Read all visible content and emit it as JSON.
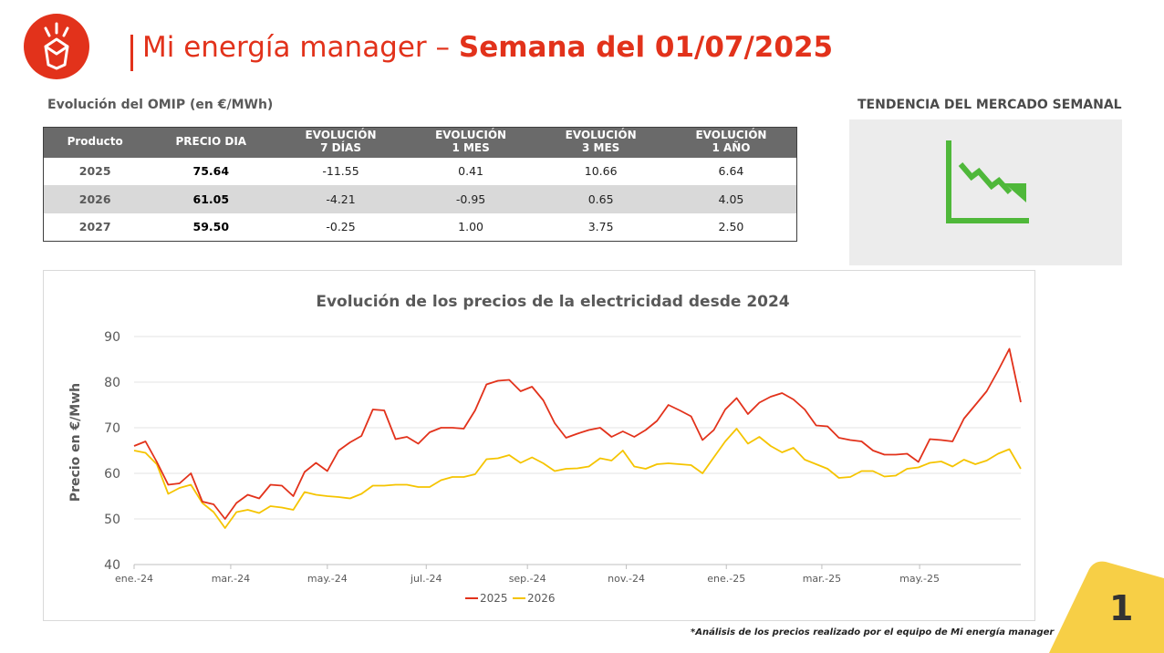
{
  "header": {
    "title_light": "Mi energía manager – ",
    "title_bold": "Semana del 01/07/2025"
  },
  "colors": {
    "brand_red": "#e2321b",
    "trend_green": "#4fb83a",
    "series_2025": "#e2321b",
    "series_2026": "#f5c400",
    "corner_yellow": "#f7cf46"
  },
  "omip": {
    "title": "Evolución del OMIP (en €/MWh)",
    "headers": [
      [
        "Producto"
      ],
      [
        "PRECIO DIA"
      ],
      [
        "EVOLUCIÓN",
        "7 DÍAS"
      ],
      [
        "EVOLUCIÓN",
        "1 MES"
      ],
      [
        "EVOLUCIÓN",
        "3 MES"
      ],
      [
        "EVOLUCIÓN",
        "1 AÑO"
      ]
    ],
    "rows": [
      [
        "2025",
        "75.64",
        "-11.55",
        "0.41",
        "10.66",
        "6.64"
      ],
      [
        "2026",
        "61.05",
        "-4.21",
        "-0.95",
        "0.65",
        "4.05"
      ],
      [
        "2027",
        "59.50",
        "-0.25",
        "1.00",
        "3.75",
        "2.50"
      ]
    ]
  },
  "trend": {
    "title": "TENDENCIA DEL MERCADO SEMANAL",
    "icon": "downtrend-chart-icon"
  },
  "chart_data": {
    "type": "line",
    "title": "Evolución de los precios de la electricidad desde 2024",
    "ylabel": "Precio en €/Mwh",
    "xlabel": "",
    "ylim": [
      40,
      90
    ],
    "yticks": [
      40,
      50,
      60,
      70,
      80,
      90
    ],
    "xlim": [
      0,
      78
    ],
    "xticks": [
      {
        "label": "ene.-24",
        "x": 0
      },
      {
        "label": "mar.-24",
        "x": 8.5
      },
      {
        "label": "may.-24",
        "x": 17
      },
      {
        "label": "jul.-24",
        "x": 25.7
      },
      {
        "label": "sep.-24",
        "x": 34.6
      },
      {
        "label": "nov.-24",
        "x": 43.3
      },
      {
        "label": "ene.-25",
        "x": 52.1
      },
      {
        "label": "mar.-25",
        "x": 60.5
      },
      {
        "label": "may.-25",
        "x": 69.1
      }
    ],
    "legend_position": "bottom-center",
    "grid": "horizontal",
    "series": [
      {
        "name": "2025",
        "color": "#e2321b",
        "values": [
          66,
          67,
          62.5,
          57.5,
          57.8,
          60,
          53.8,
          53.2,
          50,
          53.5,
          55.3,
          54.5,
          57.5,
          57.3,
          55,
          60.3,
          62.3,
          60.5,
          65,
          66.8,
          68.2,
          74,
          73.8,
          67.5,
          68,
          66.5,
          69,
          70,
          70,
          69.8,
          73.8,
          79.5,
          80.3,
          80.5,
          78,
          79,
          76,
          71,
          67.8,
          68.7,
          69.5,
          70,
          68,
          69.2,
          68,
          69.5,
          71.5,
          75,
          73.8,
          72.5,
          67.3,
          69.5,
          74,
          76.5,
          73,
          75.5,
          76.8,
          77.6,
          76.2,
          74,
          70.5,
          70.3,
          67.8,
          67.3,
          67,
          65,
          64.1,
          64.1,
          64.3,
          62.5,
          67.5,
          67.3,
          67,
          72,
          75,
          78,
          82.5,
          87.3,
          75.6
        ]
      },
      {
        "name": "2026",
        "color": "#f5c400",
        "values": [
          65,
          64.5,
          62,
          55.5,
          56.8,
          57.5,
          53.5,
          51.5,
          48,
          51.5,
          52,
          51.3,
          52.8,
          52.5,
          52,
          55.9,
          55.3,
          55,
          54.8,
          54.5,
          55.5,
          57.3,
          57.3,
          57.5,
          57.5,
          57,
          57,
          58.5,
          59.2,
          59.2,
          59.8,
          63.1,
          63.3,
          64,
          62.3,
          63.5,
          62.2,
          60.5,
          61,
          61.1,
          61.5,
          63.3,
          62.8,
          65,
          61.5,
          61,
          62,
          62.2,
          62,
          61.8,
          60,
          63.5,
          67,
          69.8,
          66.5,
          68,
          66,
          64.6,
          65.6,
          63,
          62,
          61,
          59,
          59.2,
          60.5,
          60.5,
          59.3,
          59.5,
          61,
          61.3,
          62.3,
          62.6,
          61.5,
          63,
          62,
          62.8,
          64.3,
          65.3,
          61
        ]
      }
    ]
  },
  "footnote": "*Análisis de los precios realizado por el equipo de Mi energía manager",
  "page_number": "1"
}
